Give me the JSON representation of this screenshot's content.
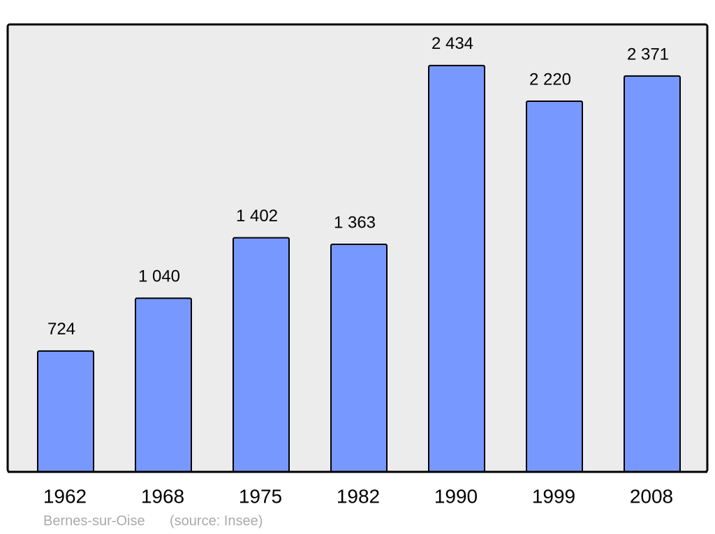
{
  "chart_data": {
    "type": "bar",
    "categories": [
      "1962",
      "1968",
      "1975",
      "1982",
      "1990",
      "1999",
      "2008"
    ],
    "values": [
      724,
      1040,
      1402,
      1363,
      2434,
      2220,
      2371
    ],
    "value_labels": [
      "724",
      "1 040",
      "1 402",
      "1 363",
      "2 434",
      "2 220",
      "2 371"
    ],
    "color": "#7799ff",
    "ylim": [
      0,
      2680
    ],
    "place": "Bernes-sur-Oise",
    "source": "(source: Insee)"
  }
}
